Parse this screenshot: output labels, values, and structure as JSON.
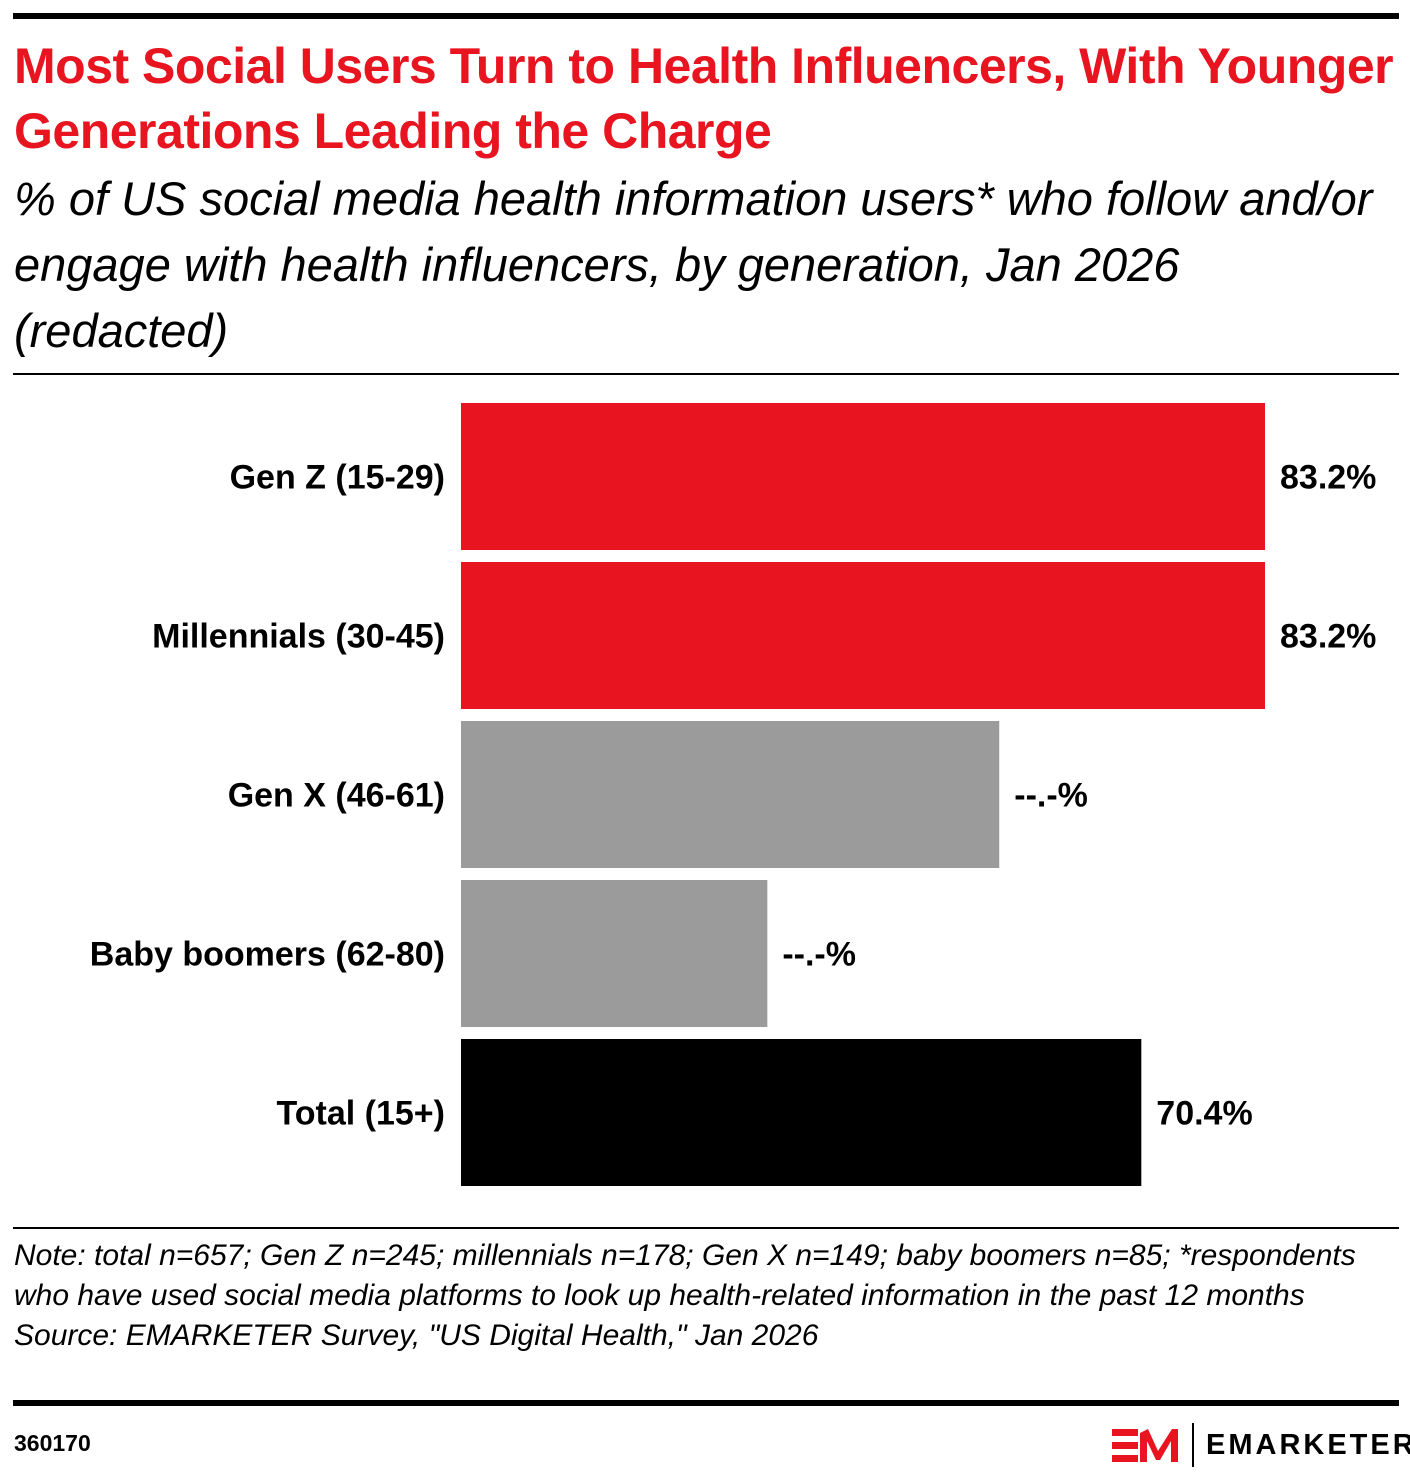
{
  "title": "Most Social Users Turn to Health Influencers, With Younger Generations Leading the Charge",
  "subtitle": "% of US social media health information users* who follow and/or engage with health influencers, by generation, Jan 2026 (redacted)",
  "notes": {
    "note": "Note: total n=657; Gen Z n=245; millennials n=178; Gen X n=149; baby boomers n=85; *respondents who have used social media platforms to look up health-related information in the past 12 months",
    "source": "Source: EMARKETER Survey, \"US Digital Health,\" Jan 2026"
  },
  "chart_id": "360170",
  "logo": {
    "mark": "EM",
    "wordmark": "EMARKETER"
  },
  "colors": {
    "accent": "#e8141f",
    "gray": "#9b9b9b",
    "black": "#000000"
  },
  "chart_data": {
    "type": "bar",
    "orientation": "horizontal",
    "categories": [
      "Gen Z (15-29)",
      "Millennials (30-45)",
      "Gen X (46-61)",
      "Baby boomers (62-80)",
      "Total (15+)"
    ],
    "values": [
      83.2,
      83.2,
      55.7,
      31.7,
      70.4
    ],
    "value_labels": [
      "83.2%",
      "83.2%",
      "--.-%",
      "--.-%",
      "70.4%"
    ],
    "bar_colors": [
      "#e8141f",
      "#e8141f",
      "#9b9b9b",
      "#9b9b9b",
      "#000000"
    ],
    "xlim": [
      0,
      100
    ],
    "grid": false,
    "legend": "none"
  }
}
